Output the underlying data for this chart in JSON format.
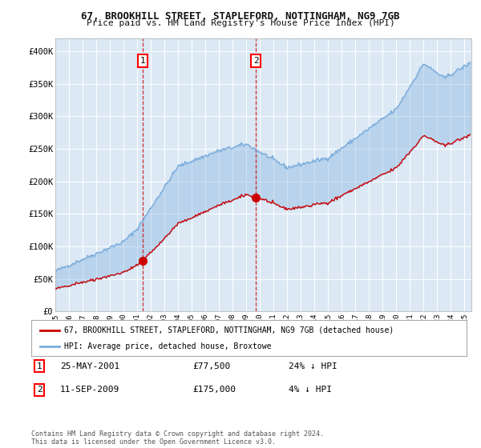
{
  "title": "67, BROOKHILL STREET, STAPLEFORD, NOTTINGHAM, NG9 7GB",
  "subtitle": "Price paid vs. HM Land Registry's House Price Index (HPI)",
  "ylabel_ticks": [
    "£0",
    "£50K",
    "£100K",
    "£150K",
    "£200K",
    "£250K",
    "£300K",
    "£350K",
    "£400K"
  ],
  "ytick_values": [
    0,
    50000,
    100000,
    150000,
    200000,
    250000,
    300000,
    350000,
    400000
  ],
  "ylim": [
    0,
    420000
  ],
  "xlim_start": 1995.0,
  "xlim_end": 2025.5,
  "fig_bg_color": "#ffffff",
  "plot_bg_color": "#dce9f5",
  "grid_color": "#ffffff",
  "red_color": "#cc0000",
  "blue_color": "#7aacdc",
  "purchase1_year": 2001.39,
  "purchase1_price": 77500,
  "purchase2_year": 2009.7,
  "purchase2_price": 175000,
  "legend_line1": "67, BROOKHILL STREET, STAPLEFORD, NOTTINGHAM, NG9 7GB (detached house)",
  "legend_line2": "HPI: Average price, detached house, Broxtowe",
  "note1_label": "1",
  "note1_date": "25-MAY-2001",
  "note1_price": "£77,500",
  "note1_hpi": "24% ↓ HPI",
  "note2_label": "2",
  "note2_date": "11-SEP-2009",
  "note2_price": "£175,000",
  "note2_hpi": "4% ↓ HPI",
  "footer": "Contains HM Land Registry data © Crown copyright and database right 2024.\nThis data is licensed under the Open Government Licence v3.0."
}
